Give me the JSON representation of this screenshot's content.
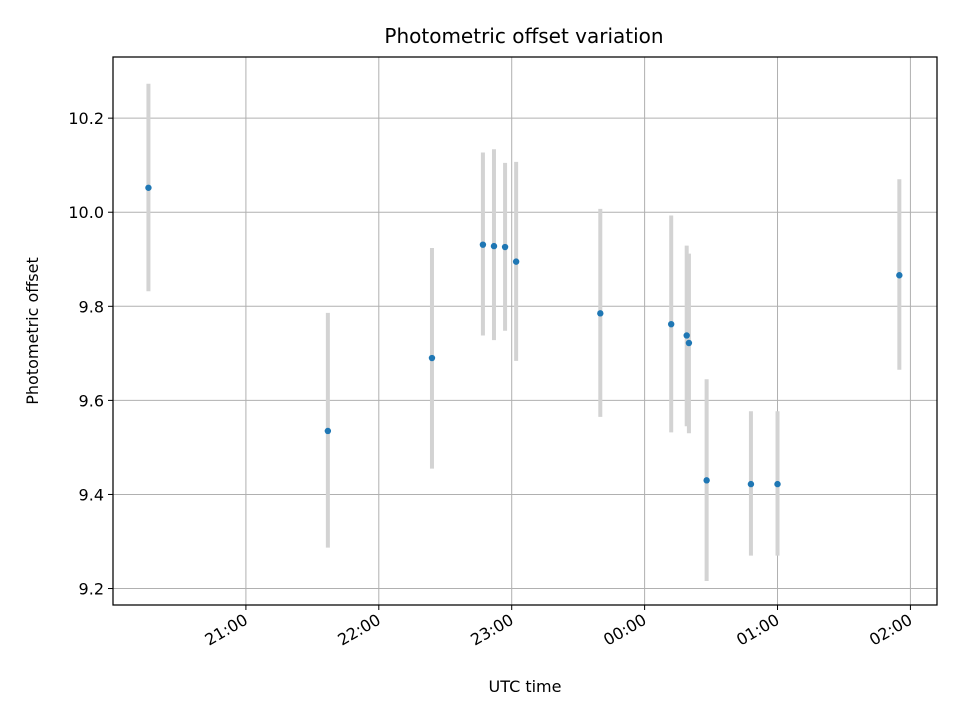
{
  "chart_data": {
    "type": "scatter",
    "title": "Photometric offset variation",
    "xlabel": "UTC time",
    "ylabel": "Photometric offset",
    "x_axis": "time",
    "xlim": [
      "20:00",
      "02:12"
    ],
    "ylim": [
      9.165,
      10.33
    ],
    "grid": true,
    "legend": "none",
    "point_color": "#1f77b4",
    "errorbar_color": "#d3d3d3",
    "x_ticks": [
      "21:00",
      "22:00",
      "23:00",
      "00:00",
      "01:00",
      "02:00"
    ],
    "y_ticks": [
      "9.2",
      "9.4",
      "9.6",
      "9.8",
      "10.0",
      "10.2"
    ],
    "points": [
      {
        "time": "20:16",
        "y": 10.052,
        "low": 9.832,
        "high": 10.273
      },
      {
        "time": "21:37",
        "y": 9.535,
        "low": 9.287,
        "high": 9.786
      },
      {
        "time": "22:24",
        "y": 9.69,
        "low": 9.455,
        "high": 9.924
      },
      {
        "time": "22:47",
        "y": 9.931,
        "low": 9.738,
        "high": 10.127
      },
      {
        "time": "22:52",
        "y": 9.928,
        "low": 9.728,
        "high": 10.134
      },
      {
        "time": "22:57",
        "y": 9.926,
        "low": 9.748,
        "high": 10.105
      },
      {
        "time": "23:02",
        "y": 9.895,
        "low": 9.684,
        "high": 10.107
      },
      {
        "time": "23:40",
        "y": 9.785,
        "low": 9.565,
        "high": 10.007
      },
      {
        "time": "00:12",
        "y": 9.762,
        "low": 9.532,
        "high": 9.993
      },
      {
        "time": "00:19",
        "y": 9.738,
        "low": 9.545,
        "high": 9.929
      },
      {
        "time": "00:20",
        "y": 9.722,
        "low": 9.53,
        "high": 9.912
      },
      {
        "time": "00:28",
        "y": 9.43,
        "low": 9.216,
        "high": 9.645
      },
      {
        "time": "00:48",
        "y": 9.422,
        "low": 9.27,
        "high": 9.577
      },
      {
        "time": "01:00",
        "y": 9.422,
        "low": 9.27,
        "high": 9.577
      },
      {
        "time": "01:55",
        "y": 9.866,
        "low": 9.665,
        "high": 10.07
      }
    ]
  }
}
